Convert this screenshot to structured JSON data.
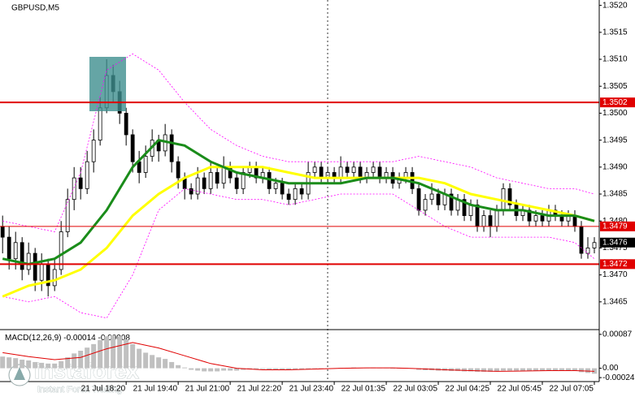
{
  "chart_data": {
    "type": "candlestick",
    "title": "GBPUSD,M5",
    "up_color": "#ffffff",
    "down_color": "#000000",
    "ylim": [
      1.346,
      1.3521
    ],
    "yticks": [
      1.3465,
      {
        "value": 1.347,
        "label": "1.3470"
      },
      1.3475,
      {
        "value": 1.348,
        "label": "1.3480"
      },
      1.3485,
      {
        "value": 1.349,
        "label": "1.3490"
      },
      1.3495,
      {
        "value": 1.35,
        "label": "1.3500"
      },
      1.3505,
      {
        "value": 1.351,
        "label": "1.3510"
      },
      1.3515,
      {
        "value": 1.352,
        "label": "1.3520"
      }
    ],
    "xlim": [
      -0.4,
      91.75
    ],
    "xticks": [
      {
        "value": 19,
        "label": "21 Jul 18:20"
      },
      {
        "value": 27,
        "label": "21 Jul 19:40"
      },
      {
        "value": 35,
        "label": "21 Jul 21:00"
      },
      {
        "value": 43,
        "label": "21 Jul 22:20"
      },
      {
        "value": 51,
        "label": "21 Jul 23:40"
      },
      {
        "value": 59,
        "label": "22 Jul 01:35"
      },
      {
        "value": 67,
        "label": "22 Jul 03:05"
      },
      {
        "value": 75,
        "label": "22 Jul 04:25"
      },
      {
        "value": 83,
        "label": "22 Jul 05:45"
      },
      {
        "value": 91,
        "label": "22 Jul 07:05"
      }
    ],
    "candles": [
      [
        1.3479,
        1.3481,
        1.3474,
        1.3477
      ],
      [
        1.3477,
        1.3479,
        1.3471,
        1.3473
      ],
      [
        1.3473,
        1.3478,
        1.3471,
        1.3476
      ],
      [
        1.3476,
        1.3477,
        1.3469,
        1.3471
      ],
      [
        1.3471,
        1.3476,
        1.347,
        1.3474
      ],
      [
        1.3474,
        1.3475,
        1.3467,
        1.3469
      ],
      [
        1.3469,
        1.3474,
        1.3467,
        1.3472
      ],
      [
        1.3472,
        1.3473,
        1.3466,
        1.3468
      ],
      [
        1.3468,
        1.3473,
        1.3467,
        1.3471
      ],
      [
        1.3471,
        1.348,
        1.347,
        1.3478
      ],
      [
        1.3478,
        1.3486,
        1.3477,
        1.3484
      ],
      [
        1.3484,
        1.349,
        1.3482,
        1.3488
      ],
      [
        1.3488,
        1.349,
        1.3484,
        1.3486
      ],
      [
        1.3486,
        1.3493,
        1.3485,
        1.3491
      ],
      [
        1.3491,
        1.3497,
        1.3489,
        1.3495
      ],
      [
        1.3495,
        1.3503,
        1.3494,
        1.3501
      ],
      [
        1.3501,
        1.351,
        1.35,
        1.3507
      ],
      [
        1.3507,
        1.3509,
        1.3502,
        1.3504
      ],
      [
        1.3504,
        1.3506,
        1.3498,
        1.35
      ],
      [
        1.35,
        1.3501,
        1.3494,
        1.3496
      ],
      [
        1.3496,
        1.3497,
        1.3489,
        1.3491
      ],
      [
        1.3491,
        1.3493,
        1.3487,
        1.3489
      ],
      [
        1.3489,
        1.3494,
        1.3488,
        1.3492
      ],
      [
        1.3492,
        1.3497,
        1.3491,
        1.3495
      ],
      [
        1.3495,
        1.3496,
        1.3491,
        1.3493
      ],
      [
        1.3493,
        1.3498,
        1.3492,
        1.3496
      ],
      [
        1.3496,
        1.3497,
        1.3489,
        1.3491
      ],
      [
        1.3491,
        1.3492,
        1.3486,
        1.3488
      ],
      [
        1.3488,
        1.3489,
        1.3484,
        1.3486
      ],
      [
        1.3486,
        1.3487,
        1.3484,
        1.3485
      ],
      [
        1.3485,
        1.349,
        1.3484,
        1.3488
      ],
      [
        1.3488,
        1.3489,
        1.3485,
        1.3486
      ],
      [
        1.3486,
        1.3491,
        1.3485,
        1.3489
      ],
      [
        1.3489,
        1.349,
        1.3486,
        1.3487
      ],
      [
        1.3487,
        1.3492,
        1.3486,
        1.349
      ],
      [
        1.349,
        1.3491,
        1.3487,
        1.3488
      ],
      [
        1.3488,
        1.3489,
        1.3485,
        1.3486
      ],
      [
        1.3486,
        1.349,
        1.3485,
        1.3489
      ],
      [
        1.3489,
        1.3491,
        1.3488,
        1.349
      ],
      [
        1.349,
        1.3491,
        1.3487,
        1.3488
      ],
      [
        1.3488,
        1.349,
        1.3487,
        1.3489
      ],
      [
        1.3489,
        1.349,
        1.3485,
        1.3486
      ],
      [
        1.3486,
        1.3488,
        1.3485,
        1.3487
      ],
      [
        1.3487,
        1.3488,
        1.3484,
        1.3485
      ],
      [
        1.3485,
        1.3486,
        1.3483,
        1.3484
      ],
      [
        1.3484,
        1.3487,
        1.3483,
        1.3486
      ],
      [
        1.3486,
        1.3487,
        1.3484,
        1.3485
      ],
      [
        1.3485,
        1.3491,
        1.3484,
        1.3489
      ],
      [
        1.3489,
        1.3491,
        1.3488,
        1.349
      ],
      [
        1.349,
        1.3491,
        1.3487,
        1.3488
      ],
      [
        1.3488,
        1.349,
        1.3487,
        1.3489
      ],
      [
        1.3489,
        1.349,
        1.3487,
        1.3488
      ],
      [
        1.3488,
        1.3492,
        1.3487,
        1.349
      ],
      [
        1.349,
        1.3491,
        1.3488,
        1.3489
      ],
      [
        1.3489,
        1.3491,
        1.3488,
        1.349
      ],
      [
        1.349,
        1.3491,
        1.3487,
        1.3488
      ],
      [
        1.3488,
        1.349,
        1.3487,
        1.3489
      ],
      [
        1.3489,
        1.3491,
        1.3488,
        1.349
      ],
      [
        1.349,
        1.3491,
        1.3487,
        1.3488
      ],
      [
        1.3488,
        1.349,
        1.3487,
        1.3489
      ],
      [
        1.3489,
        1.349,
        1.3486,
        1.3487
      ],
      [
        1.3487,
        1.3489,
        1.3486,
        1.3488
      ],
      [
        1.3488,
        1.349,
        1.3487,
        1.3489
      ],
      [
        1.3489,
        1.349,
        1.3485,
        1.3486
      ],
      [
        1.3486,
        1.3487,
        1.3481,
        1.3482
      ],
      [
        1.3482,
        1.3485,
        1.3481,
        1.3484
      ],
      [
        1.3484,
        1.3487,
        1.3483,
        1.3485
      ],
      [
        1.3485,
        1.3486,
        1.3482,
        1.3483
      ],
      [
        1.3483,
        1.3486,
        1.3482,
        1.3485
      ],
      [
        1.3485,
        1.3486,
        1.3481,
        1.3482
      ],
      [
        1.3482,
        1.3485,
        1.3481,
        1.3484
      ],
      [
        1.3484,
        1.3485,
        1.348,
        1.3481
      ],
      [
        1.3481,
        1.3484,
        1.348,
        1.3483
      ],
      [
        1.3483,
        1.3484,
        1.3478,
        1.3479
      ],
      [
        1.3479,
        1.3482,
        1.3478,
        1.3481
      ],
      [
        1.3481,
        1.3482,
        1.3477,
        1.3479
      ],
      [
        1.3479,
        1.3483,
        1.3478,
        1.3482
      ],
      [
        1.3482,
        1.3487,
        1.3481,
        1.3486
      ],
      [
        1.3486,
        1.3487,
        1.3482,
        1.3483
      ],
      [
        1.3483,
        1.3484,
        1.348,
        1.3481
      ],
      [
        1.3481,
        1.3483,
        1.348,
        1.3482
      ],
      [
        1.3482,
        1.3483,
        1.3479,
        1.348
      ],
      [
        1.348,
        1.3482,
        1.3479,
        1.3481
      ],
      [
        1.3481,
        1.3482,
        1.3479,
        1.348
      ],
      [
        1.348,
        1.3483,
        1.3479,
        1.3482
      ],
      [
        1.3482,
        1.3483,
        1.348,
        1.3481
      ],
      [
        1.3481,
        1.3482,
        1.3479,
        1.348
      ],
      [
        1.348,
        1.3482,
        1.3479,
        1.3481
      ],
      [
        1.3481,
        1.3482,
        1.3478,
        1.3479
      ],
      [
        1.3479,
        1.348,
        1.3473,
        1.3474
      ],
      [
        1.3474,
        1.3477,
        1.3473,
        1.3475
      ],
      [
        1.3475,
        1.3477,
        1.3474,
        1.3476
      ]
    ],
    "overlays": {
      "x": [
        0,
        4,
        8,
        12,
        16,
        20,
        24,
        28,
        32,
        36,
        40,
        44,
        48,
        52,
        56,
        60,
        64,
        68,
        72,
        76,
        80,
        84,
        88,
        91
      ],
      "series": [
        {
          "color": "#ff00ff",
          "dash": true,
          "width": 0.8,
          "values": [
            1.348,
            1.3479,
            1.3478,
            1.3489,
            1.3508,
            1.3511,
            1.3508,
            1.3502,
            1.3497,
            1.3494,
            1.3492,
            1.3491,
            1.3491,
            1.3491,
            1.3491,
            1.3491,
            1.3492,
            1.3491,
            1.349,
            1.3488,
            1.3487,
            1.3486,
            1.3486,
            1.3485
          ]
        },
        {
          "color": "#ff00ff",
          "dash": true,
          "width": 0.8,
          "values": [
            1.3466,
            1.3465,
            1.3466,
            1.3463,
            1.3462,
            1.347,
            1.3482,
            1.3486,
            1.3485,
            1.3484,
            1.3484,
            1.3483,
            1.3484,
            1.3485,
            1.3485,
            1.3485,
            1.3482,
            1.3479,
            1.3477,
            1.3477,
            1.3477,
            1.3477,
            1.3476,
            1.3473
          ]
        },
        {
          "color": "#ffff00",
          "dash": false,
          "width": 3,
          "values": [
            1.3466,
            1.3468,
            1.3469,
            1.3471,
            1.3475,
            1.3481,
            1.3485,
            1.3488,
            1.349,
            1.349,
            1.349,
            1.3489,
            1.3488,
            1.3488,
            1.3488,
            1.3488,
            1.3488,
            1.3487,
            1.3485,
            1.3484,
            1.3483,
            1.3482,
            1.3481,
            1.348
          ]
        },
        {
          "color": "#1a8c1a",
          "dash": false,
          "width": 3,
          "values": [
            1.3473,
            1.3472,
            1.3473,
            1.3476,
            1.3482,
            1.349,
            1.3495,
            1.3494,
            1.3491,
            1.3489,
            1.3488,
            1.3487,
            1.3487,
            1.3487,
            1.3488,
            1.3488,
            1.3487,
            1.3485,
            1.3483,
            1.3482,
            1.3482,
            1.3481,
            1.3481,
            1.348
          ]
        }
      ]
    },
    "levels": [
      {
        "value": 1.3502,
        "color": "#e00000"
      },
      {
        "value": 1.3479,
        "color": "#e00000"
      },
      {
        "value": 1.3472,
        "color": "#e00000"
      }
    ],
    "last_price": 1.3476,
    "macd": {
      "label": "MACD(12,26,9)",
      "current": [
        -0.00014,
        -8e-05
      ],
      "ylim": [
        -0.0003,
        0.00095
      ],
      "yticks": [
        0.00087,
        {
          "value": 0,
          "label": "0.00"
        },
        -0.00024
      ],
      "histogram_color": "#c0c0c0",
      "histogram": [
        0.0003,
        0.00028,
        0.00026,
        0.00022,
        0.0002,
        0.00016,
        0.00014,
        0.00012,
        0.00012,
        0.00018,
        0.00028,
        0.00038,
        0.00045,
        0.00053,
        0.00062,
        0.00072,
        0.00082,
        0.00085,
        0.00082,
        0.00074,
        0.00062,
        0.0005,
        0.0004,
        0.00034,
        0.00028,
        0.00024,
        0.00016,
        8e-05,
        2e-05,
        -4e-05,
        -6e-05,
        -8e-05,
        -8e-05,
        -8e-05,
        -6e-05,
        -6e-05,
        -6e-05,
        -4e-05,
        -3e-05,
        -3e-05,
        -2e-05,
        -3e-05,
        -3e-05,
        -4e-05,
        -5e-05,
        -4e-05,
        -4e-05,
        -2e-05,
        -1e-05,
        0,
        0,
        0,
        1e-05,
        1e-05,
        2e-05,
        1e-05,
        1e-05,
        2e-05,
        1e-05,
        1e-05,
        0,
        0,
        1e-05,
        -1e-05,
        -4e-05,
        -5e-05,
        -5e-05,
        -6e-05,
        -6e-05,
        -7e-05,
        -7e-05,
        -8e-05,
        -8e-05,
        -9e-05,
        -9e-05,
        -9e-05,
        -8e-05,
        -6e-05,
        -6e-05,
        -6e-05,
        -6e-05,
        -6e-05,
        -6e-05,
        -6e-05,
        -5e-05,
        -5e-05,
        -5e-05,
        -6e-05,
        -6e-05,
        -0.0001,
        -0.00012,
        -0.00014
      ],
      "signal_color": "#e00000",
      "signal": [
        0.0004,
        0.0003,
        0.00022,
        0.00028,
        0.0005,
        0.00066,
        0.00052,
        0.00032,
        0.00012,
        0,
        -4e-05,
        -4e-05,
        -2e-05,
        0,
        1e-05,
        1e-05,
        -1e-05,
        -4e-05,
        -6e-05,
        -8e-05,
        -7e-05,
        -6e-05,
        -6e-05,
        -8e-05
      ]
    },
    "watermark": {
      "brand": "instaforex",
      "tagline": "Instant Forex Trading"
    }
  }
}
